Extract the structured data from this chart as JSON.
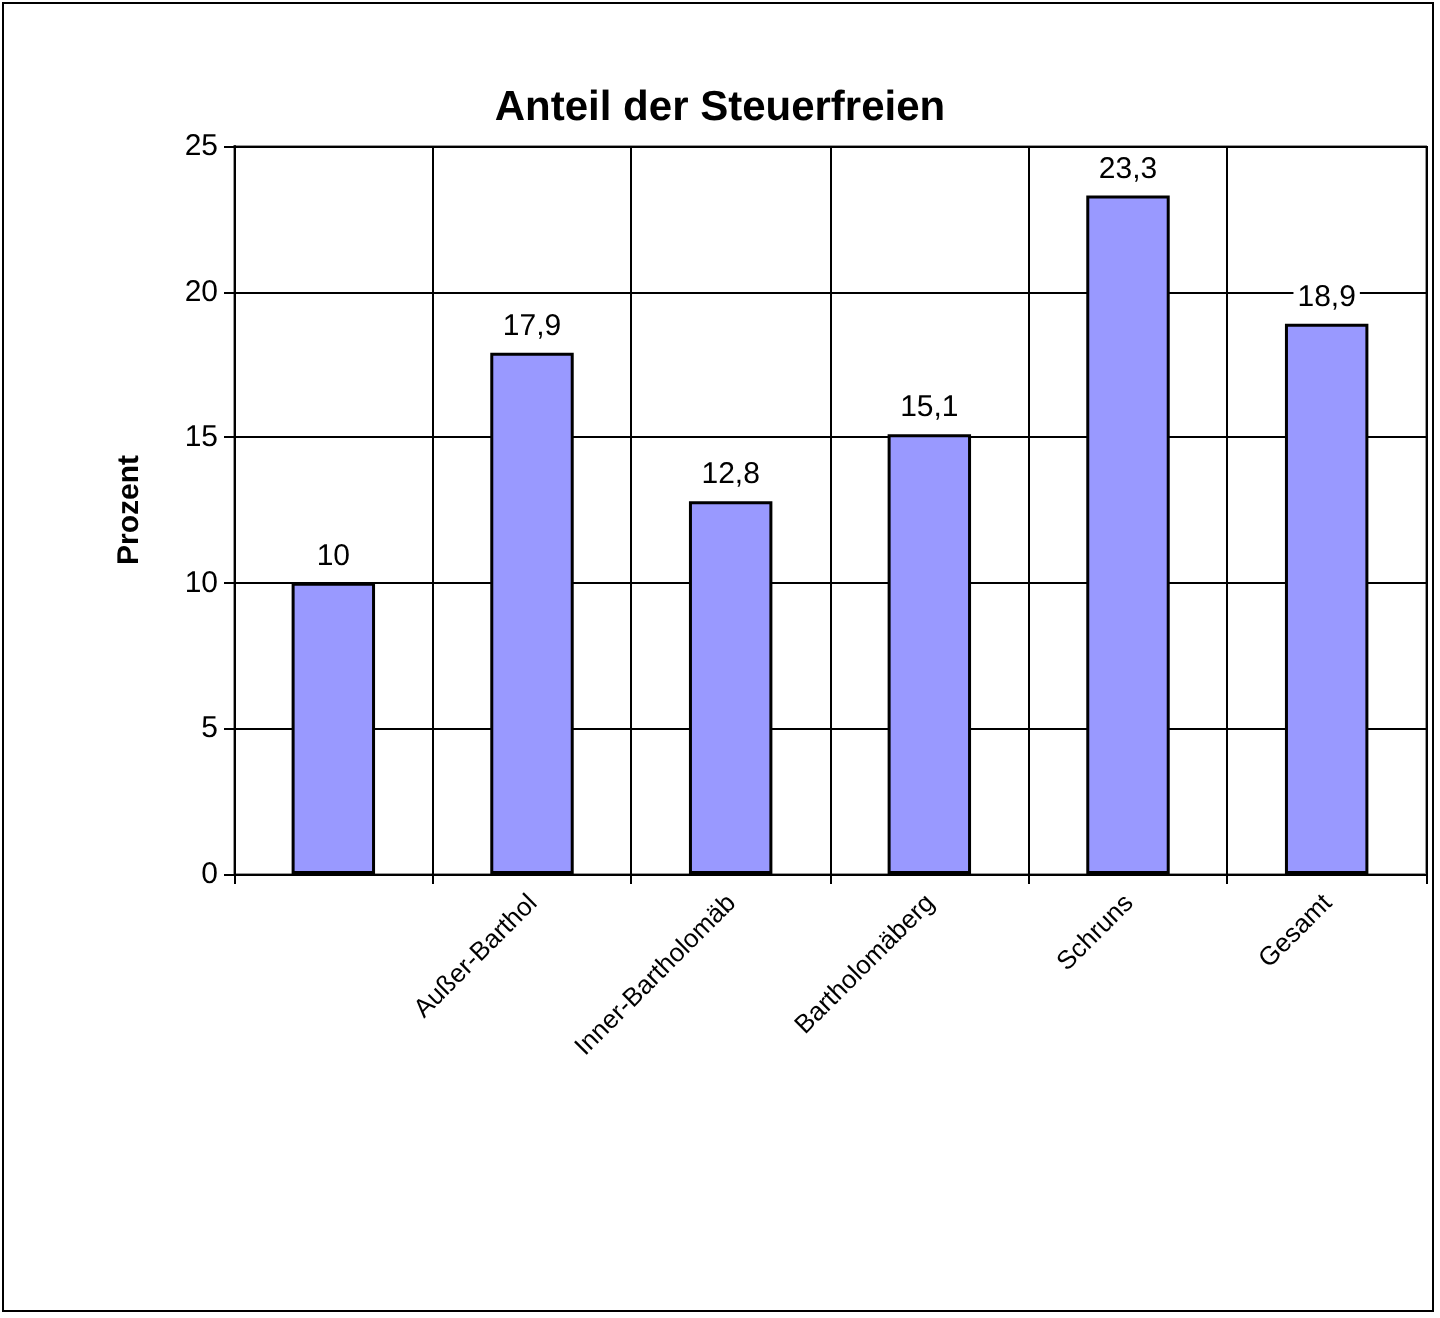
{
  "chart_data": {
    "type": "bar",
    "title": "Anteil der Steuerfreien",
    "ylabel": "Prozent",
    "categories": [
      null,
      "Außer-Barthol",
      "Inner-Bartholomäb",
      "Bartholomäberg",
      "Schruns",
      "Gesamt"
    ],
    "values": [
      10,
      17.9,
      12.8,
      15.1,
      23.3,
      18.9
    ],
    "value_labels": [
      "10",
      "17,9",
      "12,8",
      "15,1",
      "23,3",
      "18,9"
    ],
    "color": "#9999ff",
    "ylim": [
      0,
      25
    ],
    "yticks": [
      0,
      5,
      10,
      15,
      20,
      25
    ],
    "grid": true
  }
}
